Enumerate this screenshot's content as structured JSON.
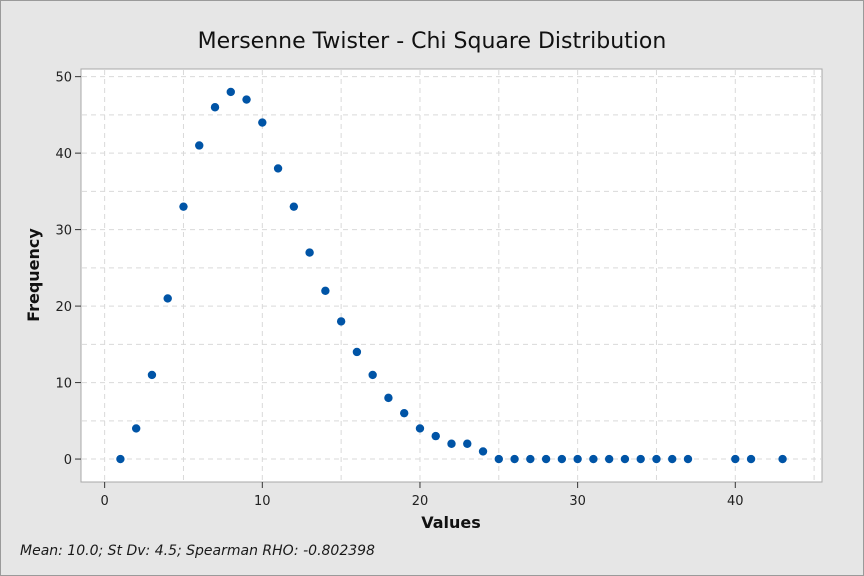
{
  "chart_data": {
    "type": "scatter",
    "title": "Mersenne Twister - Chi Square Distribution",
    "xlabel": "Values",
    "ylabel": "Frequency",
    "xlim": [
      -1.5,
      45.5
    ],
    "ylim": [
      -3,
      51
    ],
    "xticks": [
      0,
      10,
      20,
      30,
      40
    ],
    "yticks": [
      0,
      10,
      20,
      30,
      40,
      50
    ],
    "grid": true,
    "marker_color": "#0054a6",
    "series": [
      {
        "x": [
          1,
          2,
          3,
          4,
          5,
          6,
          7,
          8,
          9,
          10,
          11,
          12,
          13,
          14,
          15,
          16,
          17,
          18,
          19,
          20,
          21,
          22,
          23,
          24,
          25,
          26,
          27,
          28,
          29,
          30,
          31,
          32,
          33,
          34,
          35,
          36,
          37,
          40,
          41,
          43
        ],
        "y": [
          0,
          4,
          11,
          21,
          33,
          41,
          46,
          48,
          47,
          44,
          38,
          33,
          27,
          22,
          18,
          14,
          11,
          8,
          6,
          4,
          3,
          2,
          2,
          1,
          0,
          0,
          0,
          0,
          0,
          0,
          0,
          0,
          0,
          0,
          0,
          0,
          0,
          0,
          0,
          0
        ]
      }
    ]
  },
  "footnote": "Mean: 10.0; St Dv: 4.5; Spearman RHO: -0.802398"
}
